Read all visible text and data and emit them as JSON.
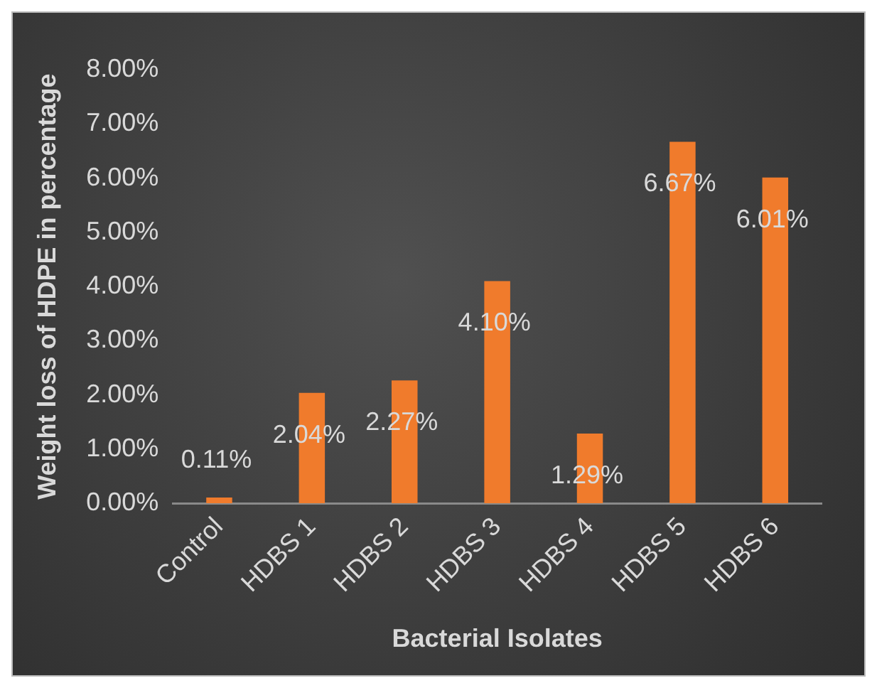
{
  "chart_data": {
    "type": "bar",
    "xlabel": "Bacterial Isolates",
    "ylabel": "Weight loss of HDPE in percentage",
    "categories": [
      "Control",
      "HDBS 1",
      "HDBS 2",
      "HDBS 3",
      "HDBS 4",
      "HDBS 5",
      "HDBS 6"
    ],
    "values": [
      0.11,
      2.04,
      2.27,
      4.1,
      1.29,
      6.67,
      6.01
    ],
    "value_labels": [
      "0.11%",
      "2.04%",
      "2.27%",
      "4.10%",
      "1.29%",
      "6.67%",
      "6.01%"
    ],
    "color": "#f07b2c",
    "ylim": [
      0,
      8
    ],
    "yticks": [
      {
        "value": 0,
        "label": "0.00%"
      },
      {
        "value": 1,
        "label": "1.00%"
      },
      {
        "value": 2,
        "label": "2.00%"
      },
      {
        "value": 3,
        "label": "3.00%"
      },
      {
        "value": 4,
        "label": "4.00%"
      },
      {
        "value": 5,
        "label": "5.00%"
      },
      {
        "value": 6,
        "label": "6.00%"
      },
      {
        "value": 7,
        "label": "7.00%"
      },
      {
        "value": 8,
        "label": "8.00%"
      }
    ],
    "grid": false,
    "legend": false
  }
}
